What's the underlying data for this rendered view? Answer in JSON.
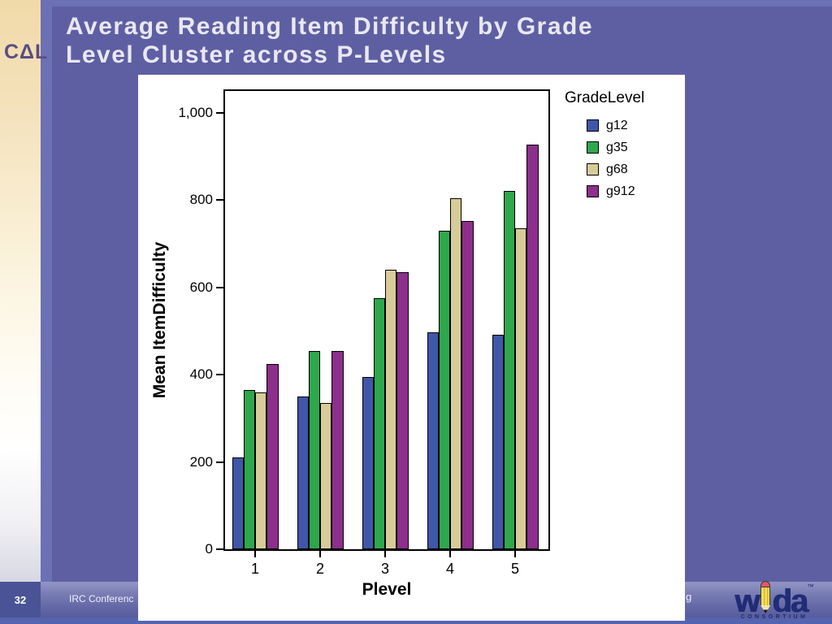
{
  "slide": {
    "title_line1": "Average Reading Item Difficulty by Grade",
    "title_line2": "Level Cluster across P-Levels",
    "page_number": "32",
    "footer_left_text": "IRC Conferenc",
    "footer_right_fragment": "g"
  },
  "logos": {
    "cal_text": "CΔL",
    "wida_w": "w",
    "wida_da": "da",
    "wida_tm": "™",
    "wida_consortium": "CONSORTIUM"
  },
  "colors": {
    "background": "#6C70B4",
    "panel": "#5E5FA3",
    "left_strip_top": "#F1DAA9",
    "page_box": "#4A5396",
    "bottom_strip": "#5464AE",
    "cal_purple": "#5A4E82",
    "wida_navy": "#202C75",
    "pencil_yellow": "#F7E055",
    "title_text": "#E9E7F0"
  },
  "chart_data": {
    "type": "bar",
    "title": "",
    "legend_title": "GradeLevel",
    "legend_position": "top-right",
    "grid": false,
    "xlabel": "Plevel",
    "ylabel": "Mean ItemDifficulty",
    "categories": [
      "1",
      "2",
      "3",
      "4",
      "5"
    ],
    "series": [
      {
        "name": "g12",
        "color": "#4056A8",
        "values": [
          210,
          350,
          395,
          498,
          492
        ]
      },
      {
        "name": "g35",
        "color": "#2EA74D",
        "values": [
          365,
          455,
          575,
          730,
          822
        ]
      },
      {
        "name": "g68",
        "color": "#D7CC99",
        "values": [
          360,
          335,
          640,
          805,
          735
        ]
      },
      {
        "name": "g912",
        "color": "#8D2F8C",
        "values": [
          425,
          455,
          635,
          752,
          928
        ]
      }
    ],
    "ylim": [
      0,
      1052
    ],
    "yticks": [
      0,
      200,
      400,
      600,
      800,
      1000
    ],
    "ytick_labels": [
      "0",
      "200",
      "400",
      "600",
      "800",
      "1,000"
    ]
  }
}
